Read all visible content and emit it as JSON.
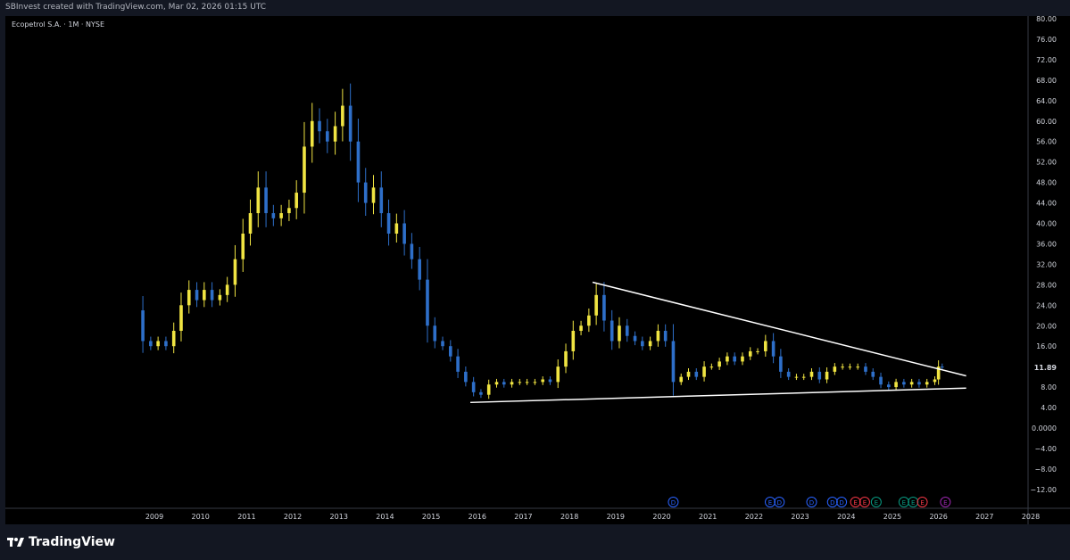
{
  "header": {
    "attribution": "SBInvest created with TradingView.com, Mar 02, 2026 01:15 UTC"
  },
  "symbol": {
    "label": "Ecopetrol S.A. · 1M · NYSE"
  },
  "footer": {
    "logo_text": "TradingView"
  },
  "colors": {
    "background": "#000000",
    "up": "#f0e442",
    "down": "#2e6fc9",
    "trendline": "#ffffff",
    "axis_text": "#d1d4dc",
    "chrome": "#131722"
  },
  "chart_data": {
    "type": "candlestick",
    "title": "Ecopetrol S.A. · 1M · NYSE",
    "ylim": [
      -15,
      80
    ],
    "y_ticks": [
      "80.00",
      "76.00",
      "72.00",
      "68.00",
      "64.00",
      "60.00",
      "56.00",
      "52.00",
      "48.00",
      "44.00",
      "40.00",
      "36.00",
      "32.00",
      "28.00",
      "24.00",
      "20.00",
      "16.00",
      "12.00",
      "8.00",
      "4.00",
      "0.0000",
      "−4.00",
      "−8.00",
      "−12.00"
    ],
    "y_tick_values": [
      80,
      76,
      72,
      68,
      64,
      60,
      56,
      52,
      48,
      44,
      40,
      36,
      32,
      28,
      24,
      20,
      16,
      12,
      8,
      4,
      0,
      -4,
      -8,
      -12
    ],
    "x_ticks": [
      "2009",
      "2010",
      "2011",
      "2012",
      "2013",
      "2014",
      "2015",
      "2016",
      "2017",
      "2018",
      "2019",
      "2020",
      "2021",
      "2022",
      "2023",
      "2024",
      "2025",
      "2026",
      "2027",
      "2028"
    ],
    "x_tick_values": [
      2009,
      2010,
      2011,
      2012,
      2013,
      2014,
      2015,
      2016,
      2017,
      2018,
      2019,
      2020,
      2021,
      2022,
      2023,
      2024,
      2025,
      2026,
      2027,
      2028
    ],
    "last_price": "11.89",
    "last_price_value": 11.89,
    "closes": [
      {
        "t": 2008.58,
        "c": 23
      },
      {
        "t": 2008.75,
        "c": 17
      },
      {
        "t": 2008.92,
        "c": 16
      },
      {
        "t": 2009.08,
        "c": 17
      },
      {
        "t": 2009.25,
        "c": 16
      },
      {
        "t": 2009.42,
        "c": 19
      },
      {
        "t": 2009.58,
        "c": 24
      },
      {
        "t": 2009.75,
        "c": 27
      },
      {
        "t": 2009.92,
        "c": 25
      },
      {
        "t": 2010.08,
        "c": 27
      },
      {
        "t": 2010.25,
        "c": 25
      },
      {
        "t": 2010.42,
        "c": 26
      },
      {
        "t": 2010.58,
        "c": 28
      },
      {
        "t": 2010.75,
        "c": 33
      },
      {
        "t": 2010.92,
        "c": 38
      },
      {
        "t": 2011.08,
        "c": 42
      },
      {
        "t": 2011.25,
        "c": 47
      },
      {
        "t": 2011.42,
        "c": 42
      },
      {
        "t": 2011.58,
        "c": 41
      },
      {
        "t": 2011.75,
        "c": 42
      },
      {
        "t": 2011.92,
        "c": 43
      },
      {
        "t": 2012.08,
        "c": 46
      },
      {
        "t": 2012.25,
        "c": 55
      },
      {
        "t": 2012.42,
        "c": 60
      },
      {
        "t": 2012.58,
        "c": 58
      },
      {
        "t": 2012.75,
        "c": 56
      },
      {
        "t": 2012.92,
        "c": 59
      },
      {
        "t": 2013.08,
        "c": 63
      },
      {
        "t": 2013.25,
        "c": 56
      },
      {
        "t": 2013.42,
        "c": 48
      },
      {
        "t": 2013.58,
        "c": 44
      },
      {
        "t": 2013.75,
        "c": 47
      },
      {
        "t": 2013.92,
        "c": 42
      },
      {
        "t": 2014.08,
        "c": 38
      },
      {
        "t": 2014.25,
        "c": 40
      },
      {
        "t": 2014.42,
        "c": 36
      },
      {
        "t": 2014.58,
        "c": 33
      },
      {
        "t": 2014.75,
        "c": 29
      },
      {
        "t": 2014.92,
        "c": 20
      },
      {
        "t": 2015.08,
        "c": 17
      },
      {
        "t": 2015.25,
        "c": 16
      },
      {
        "t": 2015.42,
        "c": 14
      },
      {
        "t": 2015.58,
        "c": 11
      },
      {
        "t": 2015.75,
        "c": 9
      },
      {
        "t": 2015.92,
        "c": 7
      },
      {
        "t": 2016.08,
        "c": 6.5
      },
      {
        "t": 2016.25,
        "c": 8.5
      },
      {
        "t": 2016.42,
        "c": 9
      },
      {
        "t": 2016.58,
        "c": 8.5
      },
      {
        "t": 2016.75,
        "c": 9
      },
      {
        "t": 2016.92,
        "c": 9
      },
      {
        "t": 2017.08,
        "c": 9
      },
      {
        "t": 2017.25,
        "c": 9
      },
      {
        "t": 2017.42,
        "c": 9.5
      },
      {
        "t": 2017.58,
        "c": 9
      },
      {
        "t": 2017.75,
        "c": 12
      },
      {
        "t": 2017.92,
        "c": 15
      },
      {
        "t": 2018.08,
        "c": 19
      },
      {
        "t": 2018.25,
        "c": 20
      },
      {
        "t": 2018.42,
        "c": 22
      },
      {
        "t": 2018.58,
        "c": 26
      },
      {
        "t": 2018.75,
        "c": 21
      },
      {
        "t": 2018.92,
        "c": 17
      },
      {
        "t": 2019.08,
        "c": 20
      },
      {
        "t": 2019.25,
        "c": 18
      },
      {
        "t": 2019.42,
        "c": 17
      },
      {
        "t": 2019.58,
        "c": 16
      },
      {
        "t": 2019.75,
        "c": 17
      },
      {
        "t": 2019.92,
        "c": 19
      },
      {
        "t": 2020.08,
        "c": 17
      },
      {
        "t": 2020.25,
        "c": 9
      },
      {
        "t": 2020.42,
        "c": 10
      },
      {
        "t": 2020.58,
        "c": 11
      },
      {
        "t": 2020.75,
        "c": 10
      },
      {
        "t": 2020.92,
        "c": 12
      },
      {
        "t": 2021.08,
        "c": 12
      },
      {
        "t": 2021.25,
        "c": 13
      },
      {
        "t": 2021.42,
        "c": 14
      },
      {
        "t": 2021.58,
        "c": 13
      },
      {
        "t": 2021.75,
        "c": 14
      },
      {
        "t": 2021.92,
        "c": 15
      },
      {
        "t": 2022.08,
        "c": 15
      },
      {
        "t": 2022.25,
        "c": 17
      },
      {
        "t": 2022.42,
        "c": 14
      },
      {
        "t": 2022.58,
        "c": 11
      },
      {
        "t": 2022.75,
        "c": 10
      },
      {
        "t": 2022.92,
        "c": 10
      },
      {
        "t": 2023.08,
        "c": 10
      },
      {
        "t": 2023.25,
        "c": 11
      },
      {
        "t": 2023.42,
        "c": 9.5
      },
      {
        "t": 2023.58,
        "c": 11
      },
      {
        "t": 2023.75,
        "c": 12
      },
      {
        "t": 2023.92,
        "c": 12
      },
      {
        "t": 2024.08,
        "c": 12
      },
      {
        "t": 2024.25,
        "c": 12
      },
      {
        "t": 2024.42,
        "c": 11
      },
      {
        "t": 2024.58,
        "c": 10
      },
      {
        "t": 2024.75,
        "c": 8.5
      },
      {
        "t": 2024.92,
        "c": 8
      },
      {
        "t": 2025.08,
        "c": 9
      },
      {
        "t": 2025.25,
        "c": 8.5
      },
      {
        "t": 2025.42,
        "c": 9
      },
      {
        "t": 2025.58,
        "c": 8.5
      },
      {
        "t": 2025.75,
        "c": 9
      },
      {
        "t": 2025.92,
        "c": 9.5
      },
      {
        "t": 2026.0,
        "c": 12
      },
      {
        "t": 2026.08,
        "c": 11.89
      }
    ],
    "trendlines": [
      {
        "name": "resistance",
        "from": {
          "t": 2018.5,
          "y": 28.5
        },
        "to": {
          "t": 2026.6,
          "y": 10.2
        }
      },
      {
        "name": "support",
        "from": {
          "t": 2015.85,
          "y": 5.0
        },
        "to": {
          "t": 2026.6,
          "y": 7.8
        }
      }
    ],
    "events": [
      {
        "t": 2020.25,
        "label": "D",
        "color": "#2962ff"
      },
      {
        "t": 2022.35,
        "label": "E",
        "color": "#2962ff"
      },
      {
        "t": 2022.55,
        "label": "D",
        "color": "#2962ff"
      },
      {
        "t": 2023.25,
        "label": "D",
        "color": "#2962ff"
      },
      {
        "t": 2023.7,
        "label": "D",
        "color": "#2962ff"
      },
      {
        "t": 2023.9,
        "label": "D",
        "color": "#2962ff"
      },
      {
        "t": 2024.2,
        "label": "E",
        "color": "#f23645"
      },
      {
        "t": 2024.4,
        "label": "E",
        "color": "#f23645"
      },
      {
        "t": 2024.65,
        "label": "E",
        "color": "#089981"
      },
      {
        "t": 2025.25,
        "label": "E",
        "color": "#089981"
      },
      {
        "t": 2025.45,
        "label": "E",
        "color": "#089981"
      },
      {
        "t": 2025.65,
        "label": "E",
        "color": "#f23645"
      },
      {
        "t": 2026.15,
        "label": "E",
        "color": "#9c27b0"
      }
    ]
  }
}
